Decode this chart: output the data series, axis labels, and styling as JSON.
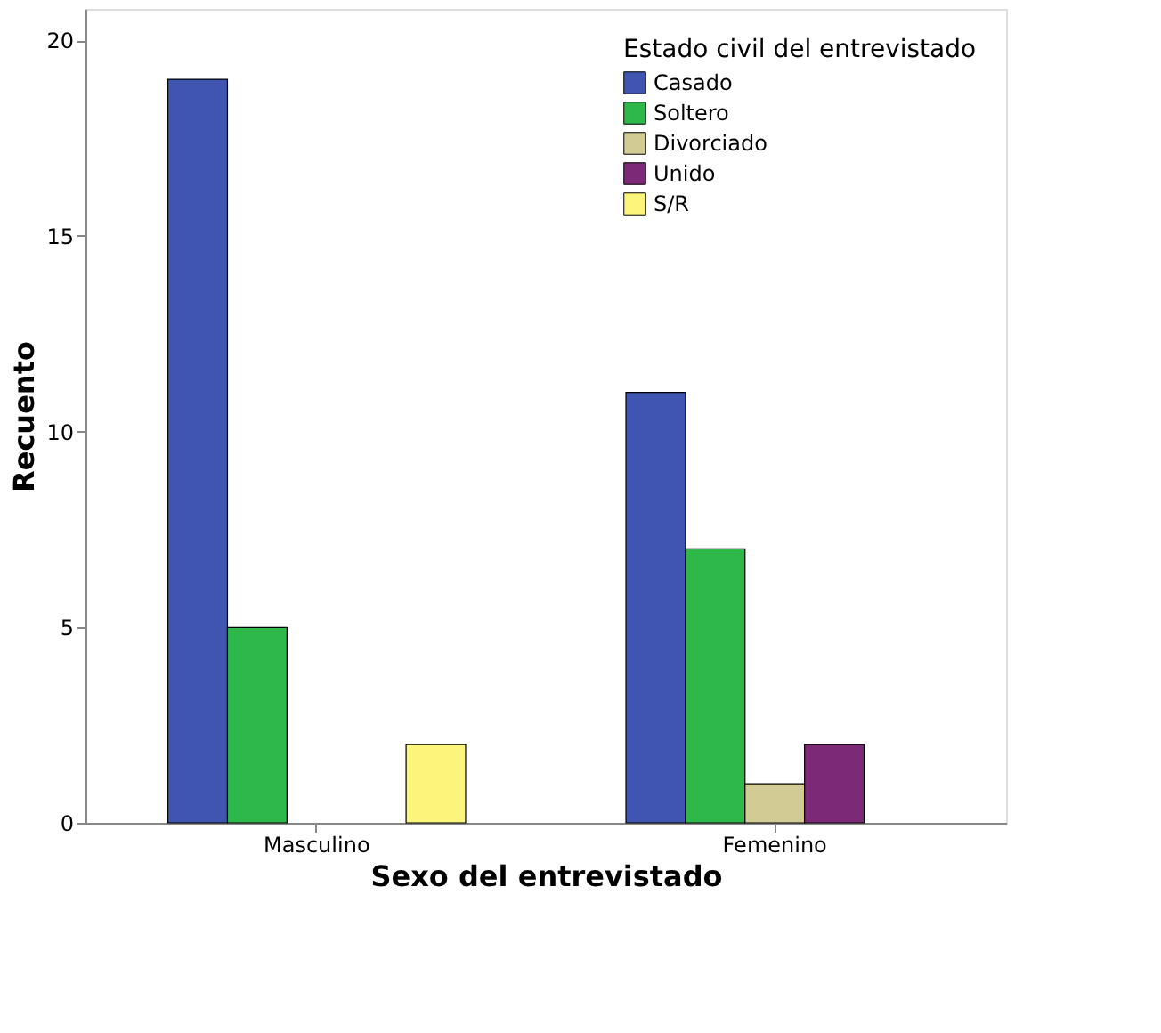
{
  "chart_data": {
    "type": "bar",
    "xlabel": "Sexo del entrevistado",
    "ylabel": "Recuento",
    "legend_title": "Estado civil del entrevistado",
    "categories": [
      "Masculino",
      "Femenino"
    ],
    "series": [
      {
        "name": "Casado",
        "color": "#3f55b0",
        "values": [
          19,
          11
        ]
      },
      {
        "name": "Soltero",
        "color": "#2eb84a",
        "values": [
          5,
          7
        ]
      },
      {
        "name": "Divorciado",
        "color": "#d2cb94",
        "values": [
          0,
          1
        ]
      },
      {
        "name": "Unido",
        "color": "#7c2a77",
        "values": [
          0,
          2
        ]
      },
      {
        "name": "S/R",
        "color": "#fbf57c",
        "values": [
          2,
          0
        ]
      }
    ],
    "ylim": [
      0,
      20.8
    ],
    "yticks": [
      0,
      5,
      10,
      15,
      20
    ],
    "grid": false,
    "legend": "top right"
  }
}
